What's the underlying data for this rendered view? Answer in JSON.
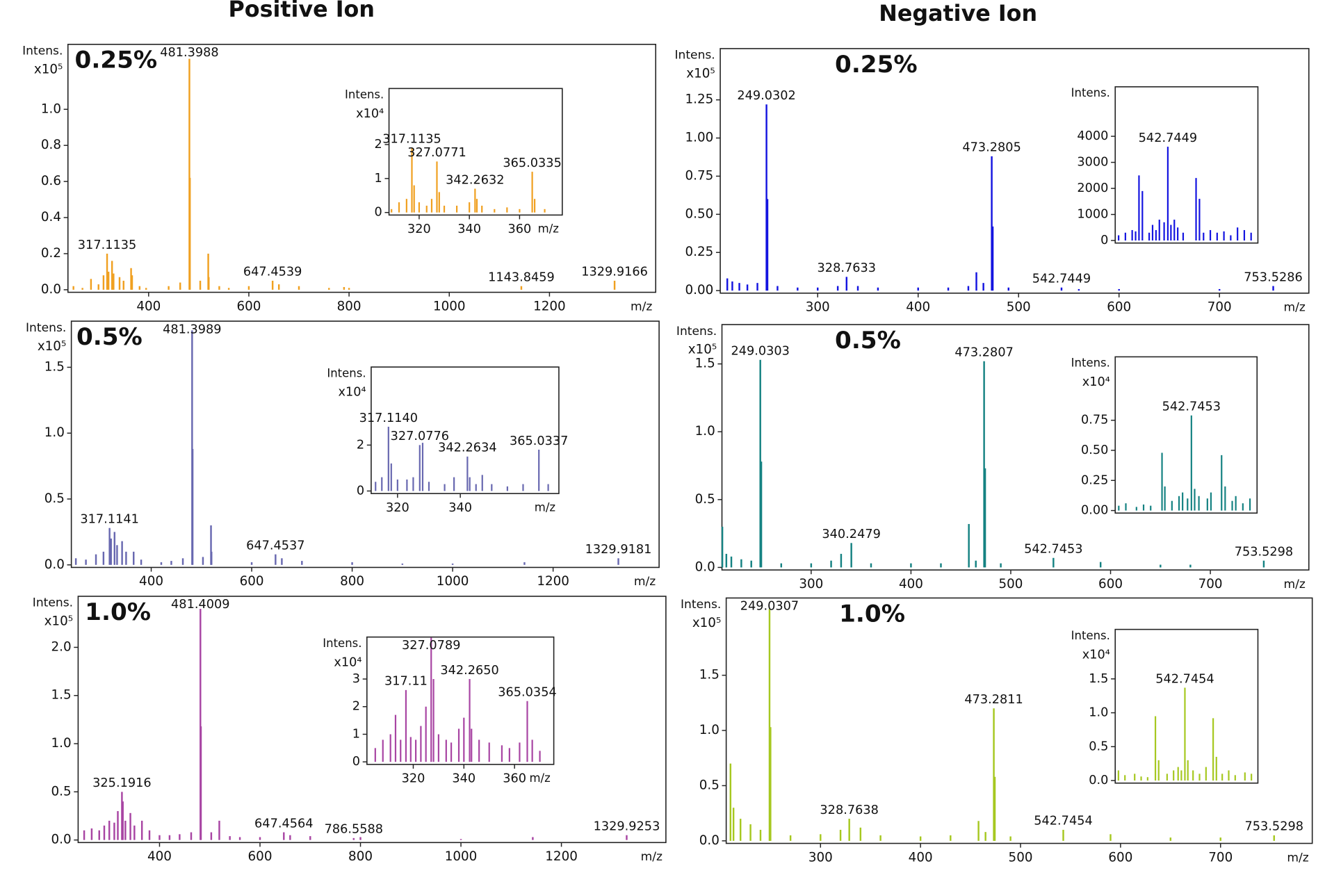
{
  "headers": [
    "Positive Ion",
    "Negative Ion"
  ],
  "chart_data": [
    {
      "type": "bar",
      "title": "0.25%",
      "ylabel": "Intens.",
      "yunit": "x10⁵",
      "xlabel": "m/z",
      "color": "#f0a020",
      "xlim": [
        239,
        1412
      ],
      "ylim": [
        0,
        1.36
      ],
      "xticks": [
        400,
        600,
        800,
        1000,
        1200
      ],
      "yticks": [
        {
          "value": 0,
          "label": "0.0"
        },
        0.2,
        0.4,
        0.6,
        0.8,
        {
          "value": 1,
          "label": "1.0"
        }
      ],
      "x": [
        250,
        268,
        285,
        300,
        310,
        317.1135,
        320,
        327,
        330,
        342,
        350,
        365,
        367,
        382,
        395,
        440,
        463,
        481.3988,
        482.4,
        503,
        519,
        520,
        541,
        560,
        600,
        647.4539,
        660,
        700,
        760,
        790,
        800,
        1143.8459,
        1329.9166
      ],
      "values": [
        0.02,
        0.01,
        0.06,
        0.03,
        0.08,
        0.2,
        0.1,
        0.16,
        0.09,
        0.07,
        0.05,
        0.12,
        0.08,
        0.02,
        0.01,
        0.02,
        0.04,
        1.28,
        0.62,
        0.05,
        0.2,
        0.07,
        0.02,
        0.01,
        0.02,
        0.05,
        0.03,
        0.02,
        0.01,
        0.015,
        0.01,
        0.02,
        0.05
      ],
      "annotations": [
        {
          "text": "481.3988",
          "x": 481.3988
        },
        {
          "text": "317.1135",
          "x": 317.1135
        },
        {
          "text": "647.4539",
          "x": 647.4539
        },
        {
          "text": "1143.8459",
          "x": 1143.8459
        },
        {
          "text": "1329.9166",
          "x": 1329.9166
        }
      ],
      "inset": {
        "type": "bar",
        "ylabel": "Intens.",
        "yunit": "x10⁴",
        "xlabel": "m/z",
        "xlim": [
          308,
          377
        ],
        "ylim": [
          0,
          3.65
        ],
        "xticks": [
          320,
          340,
          360
        ],
        "yticks": [
          0,
          1,
          2
        ],
        "x": [
          309,
          312,
          315,
          317.1135,
          318,
          320,
          323,
          325,
          327.0771,
          328,
          330,
          335,
          340,
          342.2632,
          343,
          345,
          350,
          355,
          360,
          365.0335,
          366,
          370
        ],
        "values": [
          0.1,
          0.3,
          0.4,
          1.9,
          0.8,
          0.3,
          0.2,
          0.4,
          1.5,
          0.6,
          0.2,
          0.2,
          0.3,
          0.7,
          0.4,
          0.2,
          0.1,
          0.15,
          0.1,
          1.2,
          0.4,
          0.1
        ],
        "annotations": [
          {
            "text": "317.1135",
            "x": 317.1135
          },
          {
            "text": "327.0771",
            "x": 327.0771
          },
          {
            "text": "342.2632",
            "x": 342.2632
          },
          {
            "text": "365.0335",
            "x": 365.0335
          }
        ]
      }
    },
    {
      "type": "bar",
      "title": "0.5%",
      "ylabel": "Intens.",
      "yunit": "x10⁵",
      "xlabel": "m/z",
      "color": "#6868b0",
      "xlim": [
        241,
        1411
      ],
      "ylim": [
        0,
        1.85
      ],
      "xticks": [
        400,
        600,
        800,
        1000,
        1200
      ],
      "yticks": [
        {
          "value": 0,
          "label": "0.0"
        },
        0.5,
        {
          "value": 1,
          "label": "1.0"
        },
        1.5
      ],
      "x": [
        250,
        270,
        290,
        305,
        317.1141,
        320,
        327,
        332,
        342,
        350,
        365,
        380,
        420,
        440,
        463,
        481.3989,
        482.4,
        503,
        519,
        520,
        600,
        647.4537,
        660,
        700,
        800,
        900,
        1000,
        1143,
        1329.9181
      ],
      "values": [
        0.05,
        0.04,
        0.08,
        0.1,
        0.28,
        0.2,
        0.25,
        0.15,
        0.18,
        0.1,
        0.1,
        0.04,
        0.02,
        0.03,
        0.05,
        1.78,
        0.88,
        0.06,
        0.3,
        0.1,
        0.02,
        0.08,
        0.05,
        0.03,
        0.02,
        0.01,
        0.01,
        0.02,
        0.05
      ],
      "annotations": [
        {
          "text": "481.3989",
          "x": 481.3989
        },
        {
          "text": "317.1141",
          "x": 317.1141
        },
        {
          "text": "647.4537",
          "x": 647.4537
        },
        {
          "text": "1329.9181",
          "x": 1329.9181
        }
      ],
      "inset": {
        "type": "bar",
        "ylabel": "Intens.",
        "yunit": "x10⁴",
        "xlabel": "m/z",
        "xlim": [
          311.6,
          371.4
        ],
        "ylim": [
          0,
          5.4
        ],
        "xticks": [
          320,
          340
        ],
        "yticks": [
          0,
          2
        ],
        "x": [
          313,
          315,
          317.114,
          318,
          320,
          323,
          325,
          327.0776,
          328,
          330,
          335,
          338,
          342.2634,
          343,
          345,
          347,
          350,
          355,
          360,
          365.0337,
          368
        ],
        "values": [
          0.4,
          0.6,
          2.8,
          1.2,
          0.5,
          0.5,
          0.6,
          2.0,
          2.1,
          0.4,
          0.3,
          0.6,
          1.5,
          0.6,
          0.3,
          0.7,
          0.3,
          0.2,
          0.3,
          1.8,
          0.3
        ],
        "annotations": [
          {
            "text": "317.1140",
            "x": 317.114
          },
          {
            "text": "327.0776",
            "x": 327.0776
          },
          {
            "text": "342.2634",
            "x": 342.2634
          },
          {
            "text": "365.0337",
            "x": 365.0337
          }
        ]
      }
    },
    {
      "type": "bar",
      "title": "1.0%",
      "ylabel": "Intens.",
      "yunit": "x10⁵",
      "xlabel": "m/z",
      "color": "#a845a3",
      "xlim": [
        238,
        1408
      ],
      "ylim": [
        0,
        2.53
      ],
      "xticks": [
        400,
        600,
        800,
        1000,
        1200
      ],
      "yticks": [
        {
          "value": 0,
          "label": "0.0"
        },
        0.5,
        {
          "value": 1,
          "label": "1.0"
        },
        1.5,
        {
          "value": 2,
          "label": "2.0"
        }
      ],
      "x": [
        250,
        265,
        280,
        290,
        300,
        310,
        317,
        325.1916,
        327,
        332,
        342,
        350,
        365,
        380,
        400,
        420,
        440,
        463,
        481.4009,
        482.4,
        503,
        519,
        540,
        560,
        600,
        647.4564,
        660,
        700,
        786.5588,
        800,
        1000,
        1143,
        1329.9253
      ],
      "values": [
        0.1,
        0.12,
        0.1,
        0.15,
        0.2,
        0.18,
        0.3,
        0.5,
        0.4,
        0.2,
        0.28,
        0.15,
        0.2,
        0.1,
        0.05,
        0.05,
        0.06,
        0.08,
        2.4,
        1.18,
        0.08,
        0.2,
        0.04,
        0.03,
        0.03,
        0.08,
        0.05,
        0.04,
        0.02,
        0.03,
        0.01,
        0.03,
        0.05
      ],
      "annotations": [
        {
          "text": "481.4009",
          "x": 481.4009
        },
        {
          "text": "325.1916",
          "x": 325.1916
        },
        {
          "text": "647.4564",
          "x": 647.4564
        },
        {
          "text": "786.5588",
          "x": 786.5588
        },
        {
          "text": "1329.9253",
          "x": 1329.9253
        }
      ],
      "inset": {
        "type": "bar",
        "ylabel": "Intens.",
        "yunit": "x10⁴",
        "xlabel": "m/z",
        "xlim": [
          301.7,
          375.5
        ],
        "ylim": [
          0,
          4.52
        ],
        "xticks": [
          320,
          340,
          360
        ],
        "yticks": [
          0,
          1,
          2,
          3
        ],
        "x": [
          305,
          308,
          311,
          313,
          315,
          317.11,
          319,
          321,
          323,
          325,
          327.0789,
          328,
          330,
          333,
          335,
          338,
          340,
          342.265,
          343,
          346,
          350,
          355,
          358,
          362,
          365.0354,
          367,
          370
        ],
        "values": [
          0.5,
          0.8,
          1.0,
          1.7,
          0.8,
          2.6,
          0.9,
          0.8,
          1.3,
          2.0,
          4.5,
          3.0,
          1.0,
          0.8,
          0.7,
          1.2,
          1.6,
          3.0,
          1.2,
          0.8,
          0.7,
          0.6,
          0.5,
          0.7,
          2.2,
          0.8,
          0.4
        ],
        "annotations": [
          {
            "text": "317.11",
            "x": 317.11
          },
          {
            "text": "327.0789",
            "x": 327.0789
          },
          {
            "text": "342.2650",
            "x": 342.265
          },
          {
            "text": "365.0354",
            "x": 365.0354
          }
        ]
      }
    },
    {
      "type": "bar",
      "title": "0.25%",
      "ylabel": "Intens.",
      "yunit": "x10⁵",
      "xlabel": "m/z",
      "color": "#1414e0",
      "xlim": [
        203,
        789
      ],
      "ylim": [
        0,
        1.586
      ],
      "xticks": [
        300,
        400,
        500,
        600,
        700
      ],
      "yticks": [
        {
          "value": 0,
          "label": "0.00"
        },
        0.25,
        {
          "value": 0.5,
          "label": "0.50"
        },
        0.75,
        {
          "value": 1,
          "label": "1.00"
        },
        1.25
      ],
      "x": [
        210,
        215,
        222,
        230,
        240,
        249.0302,
        250,
        260,
        280,
        300,
        320,
        328.7633,
        340,
        360,
        400,
        430,
        450,
        458,
        465,
        473.2805,
        474.3,
        490,
        542.7449,
        560,
        600,
        700,
        753.5286
      ],
      "values": [
        0.08,
        0.06,
        0.05,
        0.04,
        0.05,
        1.22,
        0.6,
        0.03,
        0.02,
        0.02,
        0.03,
        0.09,
        0.03,
        0.02,
        0.02,
        0.02,
        0.03,
        0.12,
        0.05,
        0.88,
        0.42,
        0.02,
        0.02,
        0.01,
        0.01,
        0.01,
        0.03
      ],
      "annotations": [
        {
          "text": "249.0302",
          "x": 249.0302
        },
        {
          "text": "328.7633",
          "x": 328.7633
        },
        {
          "text": "473.2805",
          "x": 473.2805
        },
        {
          "text": "542.7449",
          "x": 542.7449
        },
        {
          "text": "753.5286",
          "x": 753.5286
        }
      ],
      "inset": {
        "type": "bar",
        "ylabel": "Intens.",
        "xlim": [
          535,
          556
        ],
        "ylim": [
          0,
          5900
        ],
        "yticks": [
          0,
          1000,
          2000,
          3000,
          4000
        ],
        "x": [
          535.5,
          536.5,
          537.5,
          538,
          538.5,
          539,
          540,
          540.5,
          541,
          541.5,
          542.2,
          542.7449,
          543.2,
          543.7,
          544.2,
          545,
          546.9,
          547.4,
          548,
          549,
          550,
          551,
          552,
          553,
          554,
          555
        ],
        "values": [
          200,
          300,
          400,
          350,
          2500,
          1900,
          300,
          600,
          400,
          800,
          700,
          3600,
          600,
          800,
          500,
          300,
          2400,
          1600,
          300,
          400,
          300,
          350,
          200,
          500,
          400,
          300
        ],
        "annotations": [
          {
            "text": "542.7449",
            "x": 542.7449
          }
        ]
      }
    },
    {
      "type": "bar",
      "title": "0.5%",
      "ylabel": "Intens.",
      "yunit": "x10⁵",
      "xlabel": "m/z",
      "color": "#158282",
      "xlim": [
        210.6,
        798.7
      ],
      "ylim": [
        0,
        1.79
      ],
      "xticks": [
        300,
        400,
        500,
        600,
        700
      ],
      "yticks": [
        {
          "value": 0,
          "label": "0.0"
        },
        0.5,
        {
          "value": 1,
          "label": "1.0"
        },
        1.5
      ],
      "x": [
        211,
        215,
        220,
        230,
        240,
        249.0303,
        250,
        270,
        300,
        320,
        330,
        340.2479,
        360,
        400,
        430,
        458,
        465,
        473.2807,
        474.3,
        490,
        542.7453,
        590,
        650,
        680,
        753.5298
      ],
      "values": [
        0.3,
        0.1,
        0.08,
        0.06,
        0.05,
        1.53,
        0.78,
        0.03,
        0.03,
        0.05,
        0.1,
        0.18,
        0.03,
        0.03,
        0.03,
        0.32,
        0.05,
        1.52,
        0.73,
        0.03,
        0.07,
        0.04,
        0.02,
        0.02,
        0.05
      ],
      "annotations": [
        {
          "text": "249.0303",
          "x": 249.0303
        },
        {
          "text": "340.2479",
          "x": 340.2479
        },
        {
          "text": "473.2807",
          "x": 473.2807
        },
        {
          "text": "542.7453",
          "x": 542.7453
        },
        {
          "text": "753.5298",
          "x": 753.5298
        }
      ],
      "inset": {
        "type": "bar",
        "ylabel": "Intens.",
        "yunit": "x10⁴",
        "xlim": [
          532,
          552
        ],
        "ylim": [
          0,
          1.277
        ],
        "yticks": [
          {
            "value": 0,
            "label": "0.00"
          },
          0.25,
          {
            "value": 0.5,
            "label": "0.50"
          },
          0.75
        ],
        "x": [
          532.5,
          533.5,
          535,
          536,
          537,
          538.6,
          539,
          540,
          541,
          541.5,
          542.2,
          542.7453,
          543.2,
          543.8,
          545,
          545.5,
          547,
          547.5,
          548.5,
          549,
          550,
          551
        ],
        "values": [
          0.04,
          0.06,
          0.03,
          0.05,
          0.04,
          0.48,
          0.2,
          0.08,
          0.12,
          0.15,
          0.1,
          0.79,
          0.18,
          0.12,
          0.1,
          0.15,
          0.46,
          0.2,
          0.08,
          0.12,
          0.06,
          0.1
        ],
        "annotations": [
          {
            "text": "542.7453",
            "x": 542.7453
          }
        ]
      }
    },
    {
      "type": "bar",
      "title": "1.0%",
      "ylabel": "Intens.",
      "yunit": "x10⁵",
      "xlabel": "m/z",
      "color": "#a6c820",
      "xlim": [
        205.7,
        791.7
      ],
      "ylim": [
        0,
        2.2
      ],
      "xticks": [
        300,
        400,
        500,
        600,
        700
      ],
      "yticks": [
        {
          "value": 0,
          "label": "0.0"
        },
        0.5,
        {
          "value": 1,
          "label": "1.0"
        },
        1.5
      ],
      "x": [
        210,
        213,
        220,
        230,
        240,
        249.0307,
        250,
        270,
        300,
        320,
        328.7638,
        340,
        360,
        400,
        430,
        458,
        465,
        473.2811,
        474.3,
        490,
        542.7454,
        590,
        650,
        700,
        753.5298
      ],
      "values": [
        0.7,
        0.3,
        0.2,
        0.15,
        0.1,
        2.1,
        1.03,
        0.05,
        0.06,
        0.1,
        0.2,
        0.12,
        0.05,
        0.04,
        0.05,
        0.18,
        0.08,
        1.2,
        0.58,
        0.04,
        0.1,
        0.06,
        0.03,
        0.03,
        0.05
      ],
      "annotations": [
        {
          "text": "249.0307",
          "x": 249.0307
        },
        {
          "text": "328.7638",
          "x": 328.7638
        },
        {
          "text": "473.2811",
          "x": 473.2811
        },
        {
          "text": "542.7454",
          "x": 542.7454
        },
        {
          "text": "753.5298",
          "x": 753.5298
        }
      ],
      "inset": {
        "type": "bar",
        "ylabel": "Intens.",
        "yunit": "x10⁴",
        "xlim": [
          532,
          554
        ],
        "ylim": [
          0,
          2.23
        ],
        "yticks": [
          {
            "value": 0,
            "label": "0.0"
          },
          0.5,
          {
            "value": 1,
            "label": "1.0"
          },
          1.5
        ],
        "x": [
          532.5,
          533.5,
          535,
          536,
          537,
          538.2,
          538.7,
          540,
          541,
          541.7,
          542.2,
          542.7454,
          543.2,
          544,
          545,
          546,
          547.1,
          547.6,
          548.5,
          549.5,
          550.5,
          552,
          553
        ],
        "values": [
          0.15,
          0.08,
          0.1,
          0.06,
          0.05,
          0.95,
          0.3,
          0.1,
          0.15,
          0.2,
          0.15,
          1.37,
          0.3,
          0.15,
          0.1,
          0.2,
          0.92,
          0.35,
          0.1,
          0.15,
          0.08,
          0.12,
          0.1
        ],
        "annotations": [
          {
            "text": "542.7454",
            "x": 542.7454
          }
        ]
      }
    }
  ]
}
